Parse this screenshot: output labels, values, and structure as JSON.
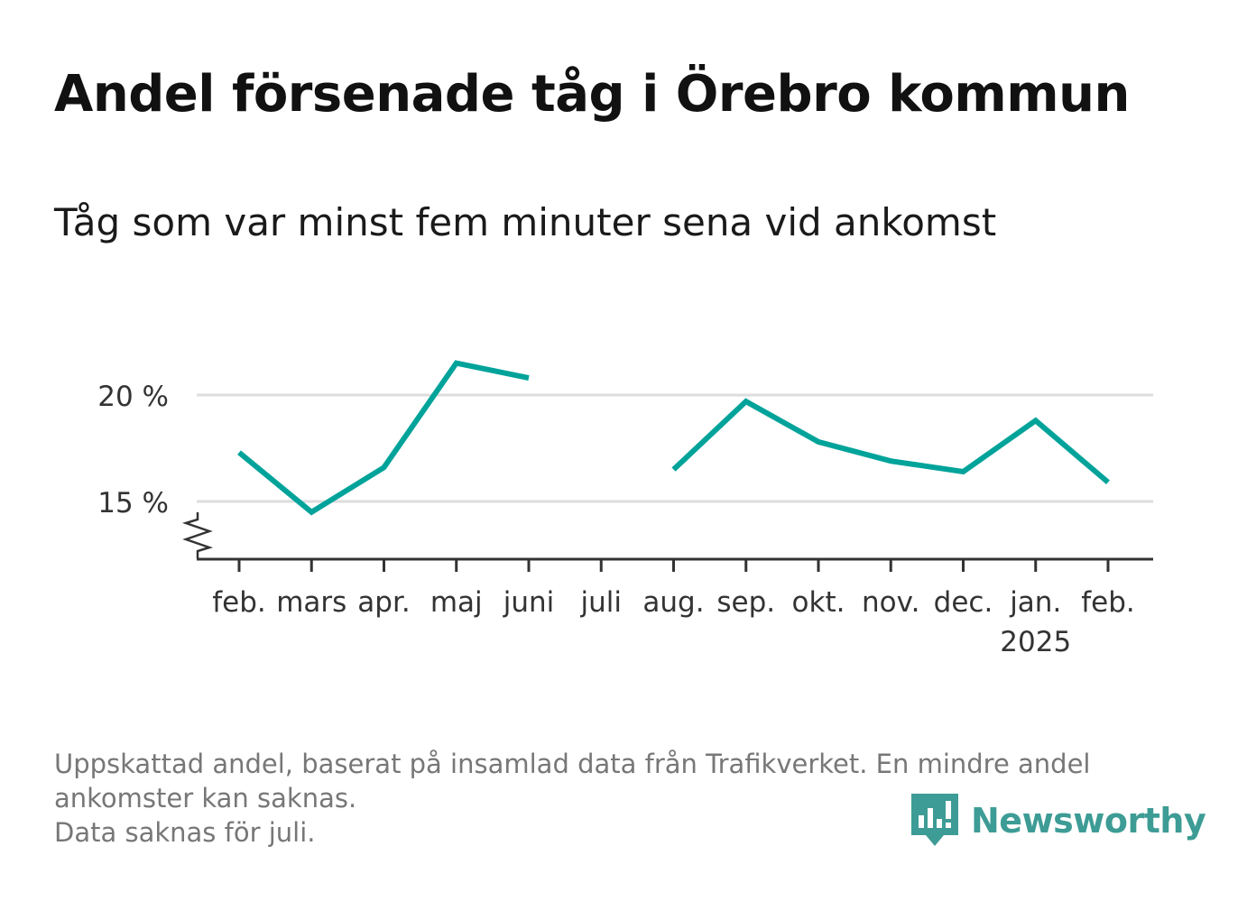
{
  "title": "Andel försenade tåg i Örebro kommun",
  "subtitle": "Tåg som var minst fem minuter sena vid ankomst",
  "footnote": [
    "Uppskattad andel, baserat på insamlad data från Trafikverket. En mindre andel",
    "ankomster kan saknas.",
    "Data saknas för juli."
  ],
  "brand": {
    "name": "Newsworthy",
    "color": "#3d9c95"
  },
  "chart_data": {
    "type": "line",
    "categories": [
      "feb.",
      "mars",
      "apr.",
      "maj",
      "juni",
      "juli",
      "aug.",
      "sep.",
      "okt.",
      "nov.",
      "dec.",
      "jan.",
      "feb."
    ],
    "year_labels": [
      "",
      "",
      "",
      "",
      "",
      "",
      "",
      "",
      "",
      "",
      "",
      "2025",
      ""
    ],
    "series": [
      {
        "color": "#00a39a",
        "values": [
          17.3,
          14.5,
          16.6,
          21.5,
          20.8,
          null,
          16.5,
          19.7,
          17.8,
          16.9,
          16.4,
          18.8,
          15.9
        ]
      }
    ],
    "yticks": [
      15,
      20
    ],
    "ytick_labels": [
      "15 %",
      "20 %"
    ],
    "ylim": [
      12.3,
      23
    ],
    "axis_break": true,
    "grid": true,
    "colors": {
      "grid": "#dddddd",
      "axis": "#333333",
      "tick_text": "#333333"
    }
  }
}
